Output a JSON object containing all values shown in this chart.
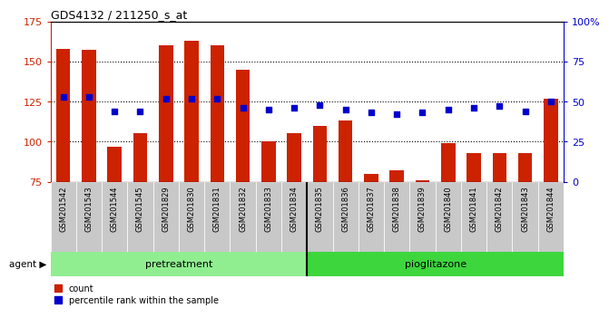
{
  "title": "GDS4132 / 211250_s_at",
  "samples": [
    "GSM201542",
    "GSM201543",
    "GSM201544",
    "GSM201545",
    "GSM201829",
    "GSM201830",
    "GSM201831",
    "GSM201832",
    "GSM201833",
    "GSM201834",
    "GSM201835",
    "GSM201836",
    "GSM201837",
    "GSM201838",
    "GSM201839",
    "GSM201840",
    "GSM201841",
    "GSM201842",
    "GSM201843",
    "GSM201844"
  ],
  "counts": [
    158,
    157,
    97,
    105,
    160,
    163,
    160,
    145,
    100,
    105,
    110,
    113,
    80,
    82,
    76,
    99,
    93,
    93,
    93,
    127
  ],
  "percentiles": [
    53,
    53,
    44,
    44,
    52,
    52,
    52,
    46,
    45,
    46,
    48,
    45,
    43,
    42,
    43,
    45,
    46,
    47,
    44,
    50
  ],
  "ylim_left": [
    75,
    175
  ],
  "ylim_right": [
    0,
    100
  ],
  "yticks_left": [
    75,
    100,
    125,
    150,
    175
  ],
  "yticks_right": [
    0,
    25,
    50,
    75,
    100
  ],
  "ytick_labels_right": [
    "0",
    "25",
    "50",
    "75",
    "100%"
  ],
  "pretreatment_color": "#90EE90",
  "pioglitazone_color": "#3DD63D",
  "group_divider": 9.5,
  "bar_color": "#cc2200",
  "dot_color": "#0000cc",
  "bar_width": 0.55,
  "legend_count_label": "count",
  "legend_pct_label": "percentile rank within the sample",
  "tick_label_color_left": "#cc2200",
  "tick_label_color_right": "#0000cc",
  "xtick_bg_color": "#c8c8c8",
  "grid_yticks": [
    100,
    125,
    150
  ]
}
